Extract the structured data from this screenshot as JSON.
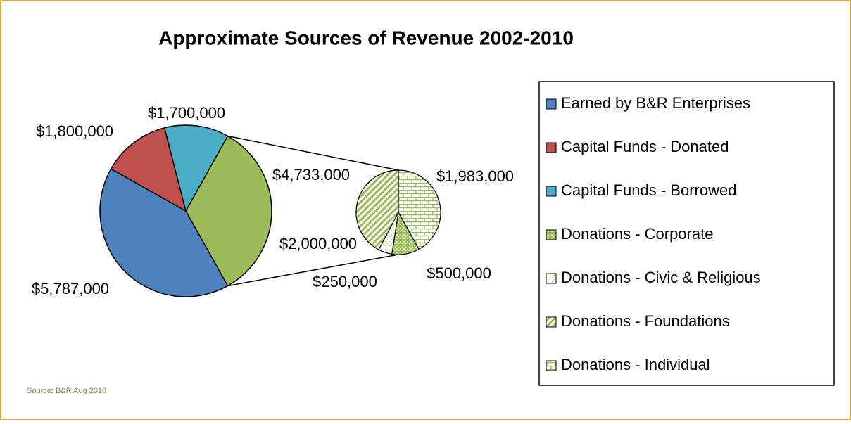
{
  "chart_data": {
    "type": "pie_of_pie",
    "title": "Approximate Sources of Revenue 2002-2010",
    "source": "Source: B&R Aug 2010",
    "legend": "right",
    "categories": [
      "Earned by B&R Enterprises",
      "Capital Funds - Donated",
      "Capital Funds - Borrowed"
    ],
    "values": [
      5787000,
      1800000,
      1700000
    ],
    "value_labels": [
      "$5,787,000",
      "$1,800,000",
      "$1,700,000"
    ],
    "colors": [
      "#4f81bd",
      "#c0504d",
      "#4bacc6"
    ],
    "combined": {
      "value": 4733000,
      "label": "$4,733,000",
      "color": "#9bbb59"
    },
    "secondary": {
      "categories": [
        "Donations - Corporate",
        "Donations - Civic & Religious",
        "Donations - Foundations",
        "Donations - Individual"
      ],
      "values": [
        500000,
        250000,
        2000000,
        1983000
      ],
      "value_labels": [
        "$500,000",
        "$250,000",
        "$2,000,000",
        "$1,983,000"
      ],
      "patterns": [
        "dots",
        "sparse-dots",
        "diagonal",
        "brick"
      ],
      "color": "#9bbb59"
    }
  }
}
